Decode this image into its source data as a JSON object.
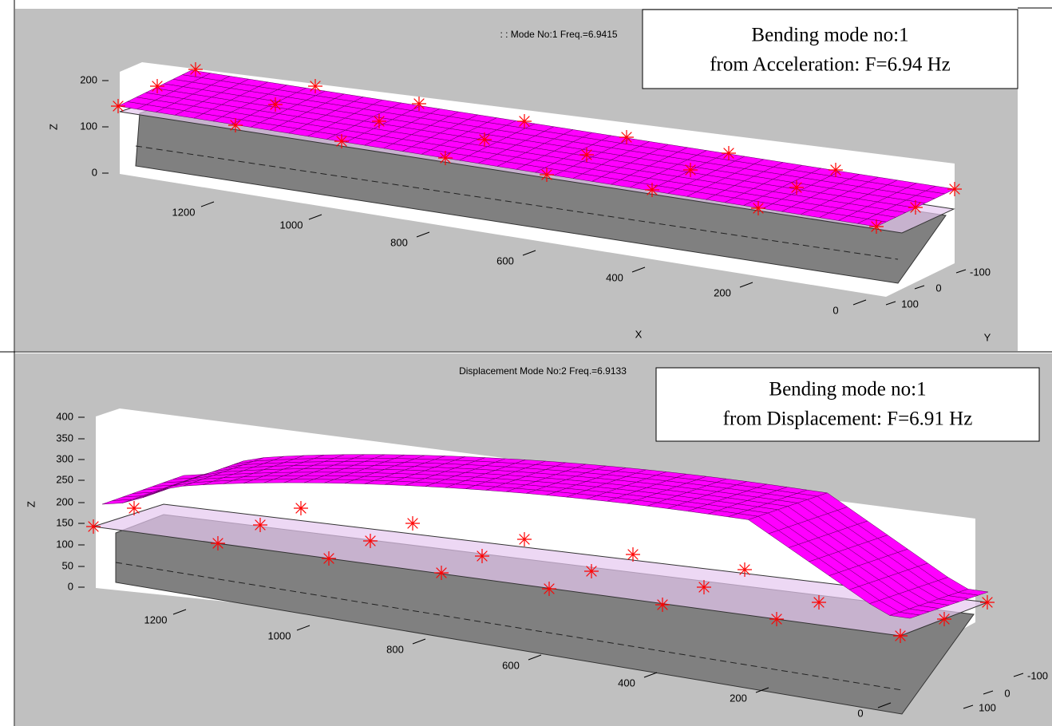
{
  "panels": [
    {
      "title": ":  :    Mode No:1 Freq.=6.9415",
      "annotation": [
        "Bending mode no:1",
        "from Acceleration: F=6.94 Hz"
      ],
      "z_label": "Z",
      "x_label": "X",
      "y_label": "Y",
      "zticks": [
        0,
        100,
        200
      ],
      "xticks": [
        0,
        200,
        400,
        600,
        800,
        1000,
        1200
      ],
      "yticks": [
        -100,
        0,
        100
      ]
    },
    {
      "title": "Displacement  Mode No:2 Freq.=6.9133",
      "annotation": [
        "Bending mode no:1",
        "from Displacement: F=6.91 Hz"
      ],
      "z_label": "Z",
      "zticks": [
        0,
        50,
        100,
        150,
        200,
        250,
        300,
        350,
        400
      ],
      "xticks": [
        0,
        200,
        400,
        600,
        800,
        1000,
        1200
      ],
      "yticks": [
        -100,
        0,
        100
      ]
    }
  ]
}
